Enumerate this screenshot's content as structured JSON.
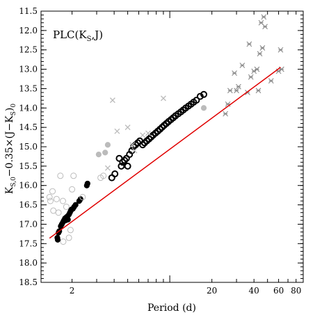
{
  "chart_data": {
    "type": "scatter",
    "title": "",
    "panel_label": "PLC(K",
    "panel_label_sub": "S",
    "panel_label_tail": ",J)",
    "xlabel": "Period (d)",
    "ylabel_text": "K",
    "x_scale": "log",
    "xlim": [
      1.2,
      90
    ],
    "ylim": [
      11.5,
      18.5
    ],
    "y_inverted": true,
    "x_ticks": [
      {
        "value": 2,
        "label": "2"
      },
      {
        "value": 20,
        "label": "20"
      },
      {
        "value": 40,
        "label": "40"
      },
      {
        "value": 60,
        "label": "60"
      },
      {
        "value": 80,
        "label": "80"
      }
    ],
    "y_ticks": [
      "11.5",
      "12.0",
      "12.5",
      "13.0",
      "13.5",
      "14.0",
      "14.5",
      "15.0",
      "15.5",
      "16.0",
      "16.5",
      "17.0",
      "17.5",
      "18.0",
      "18.5"
    ],
    "fit_line": {
      "color": "#e00000",
      "points": [
        [
          1.38,
          17.36
        ],
        [
          62,
          12.95
        ]
      ]
    },
    "series": [
      {
        "marker": "filled-circle",
        "color": "#000000",
        "points": [
          [
            1.57,
            17.35
          ],
          [
            1.58,
            17.4
          ],
          [
            1.6,
            17.22
          ],
          [
            1.62,
            17.18
          ],
          [
            1.66,
            17.05
          ],
          [
            1.69,
            17.0
          ],
          [
            1.72,
            16.95
          ],
          [
            1.75,
            16.9
          ],
          [
            1.78,
            16.85
          ],
          [
            1.8,
            16.9
          ],
          [
            1.82,
            16.82
          ],
          [
            1.85,
            16.8
          ],
          [
            1.87,
            16.88
          ],
          [
            1.9,
            16.75
          ],
          [
            1.93,
            16.7
          ],
          [
            1.96,
            16.65
          ],
          [
            1.98,
            16.62
          ],
          [
            2.03,
            16.6
          ],
          [
            2.07,
            16.55
          ],
          [
            2.12,
            16.5
          ],
          [
            2.25,
            16.4
          ],
          [
            2.3,
            16.35
          ],
          [
            2.55,
            16.0
          ],
          [
            2.58,
            15.95
          ]
        ]
      },
      {
        "marker": "open-circle",
        "color": "#000000",
        "points": [
          [
            3.85,
            15.8
          ],
          [
            4.05,
            15.7
          ],
          [
            4.35,
            15.3
          ],
          [
            4.5,
            15.5
          ],
          [
            4.6,
            15.4
          ],
          [
            4.75,
            15.35
          ],
          [
            4.9,
            15.3
          ],
          [
            5.0,
            15.5
          ],
          [
            5.15,
            15.2
          ],
          [
            5.35,
            15.1
          ],
          [
            5.5,
            15.0
          ],
          [
            5.7,
            14.95
          ],
          [
            5.9,
            14.9
          ],
          [
            6.1,
            14.85
          ],
          [
            6.4,
            14.95
          ],
          [
            6.6,
            14.9
          ],
          [
            6.85,
            14.85
          ],
          [
            7.1,
            14.8
          ],
          [
            7.35,
            14.75
          ],
          [
            7.6,
            14.7
          ],
          [
            7.9,
            14.65
          ],
          [
            8.2,
            14.6
          ],
          [
            8.5,
            14.55
          ],
          [
            8.8,
            14.5
          ],
          [
            9.1,
            14.45
          ],
          [
            9.45,
            14.4
          ],
          [
            9.8,
            14.35
          ],
          [
            10.2,
            14.3
          ],
          [
            10.6,
            14.25
          ],
          [
            11.0,
            14.2
          ],
          [
            11.5,
            14.15
          ],
          [
            12.0,
            14.1
          ],
          [
            12.5,
            14.05
          ],
          [
            13.0,
            14.0
          ],
          [
            13.6,
            13.95
          ],
          [
            14.2,
            13.9
          ],
          [
            14.8,
            13.85
          ],
          [
            15.5,
            13.8
          ],
          [
            16.5,
            13.7
          ],
          [
            17.5,
            13.65
          ]
        ]
      },
      {
        "marker": "open-circle",
        "color": "#bbbbbb",
        "points": [
          [
            1.38,
            16.3
          ],
          [
            1.4,
            16.4
          ],
          [
            1.45,
            16.15
          ],
          [
            1.47,
            16.65
          ],
          [
            1.55,
            16.35
          ],
          [
            1.6,
            16.7
          ],
          [
            1.65,
            15.75
          ],
          [
            1.72,
            16.4
          ],
          [
            1.73,
            17.45
          ],
          [
            1.82,
            16.55
          ],
          [
            1.9,
            17.35
          ],
          [
            1.95,
            17.15
          ],
          [
            2.0,
            16.1
          ],
          [
            2.05,
            15.75
          ],
          [
            2.38,
            16.3
          ],
          [
            3.2,
            15.8
          ],
          [
            3.35,
            15.75
          ]
        ]
      },
      {
        "marker": "filled-circle",
        "color": "#bbbbbb",
        "points": [
          [
            3.1,
            15.2
          ],
          [
            3.45,
            15.15
          ],
          [
            3.6,
            14.95
          ],
          [
            17.5,
            14.0
          ]
        ]
      },
      {
        "marker": "cross",
        "color": "#bbbbbb",
        "points": [
          [
            3.6,
            15.55
          ],
          [
            3.9,
            13.8
          ],
          [
            4.2,
            14.6
          ],
          [
            5.0,
            14.5
          ],
          [
            5.4,
            14.95
          ],
          [
            5.6,
            15.1
          ],
          [
            6.4,
            14.7
          ],
          [
            7.0,
            14.65
          ],
          [
            9.0,
            13.75
          ]
        ]
      },
      {
        "marker": "star",
        "color": "#888888",
        "points": [
          [
            25,
            14.15
          ],
          [
            26,
            13.9
          ],
          [
            27,
            13.55
          ],
          [
            29,
            13.1
          ],
          [
            30,
            13.55
          ],
          [
            31,
            13.45
          ],
          [
            33,
            12.9
          ],
          [
            36,
            13.6
          ],
          [
            37,
            12.35
          ],
          [
            38,
            13.2
          ],
          [
            40,
            13.05
          ],
          [
            42,
            13.0
          ],
          [
            43,
            13.55
          ],
          [
            44,
            12.6
          ],
          [
            45,
            11.8
          ],
          [
            46,
            12.45
          ],
          [
            47,
            11.65
          ],
          [
            48,
            11.9
          ],
          [
            53,
            13.3
          ],
          [
            60,
            13.05
          ],
          [
            62,
            12.5
          ],
          [
            63,
            13.0
          ]
        ]
      }
    ]
  }
}
